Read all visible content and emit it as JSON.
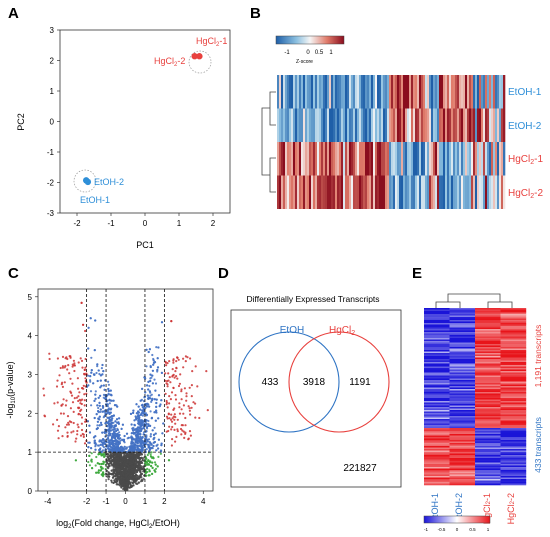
{
  "panels": {
    "A": {
      "letter": "A",
      "xlabel": "PC1",
      "ylabel": "PC2",
      "x_ticks": [
        "-2",
        "-1",
        "0",
        "1",
        "2"
      ],
      "y_ticks": [
        "3",
        "2",
        "1",
        "0",
        "-1",
        "-2",
        "-3"
      ],
      "group_labels": {
        "hg1": "HgCl",
        "hg1_sub": "2",
        "hg1_suf": "-1",
        "hg2": "HgCl",
        "hg2_sub": "2",
        "hg2_suf": "-2",
        "etoh1": "EtOH-1",
        "etoh2": "EtOH-2"
      },
      "colors": {
        "hg": "#e8413e",
        "etoh": "#2f8fd8"
      }
    },
    "B": {
      "letter": "B",
      "legend_ticks": [
        "-1",
        "0",
        "0.5",
        "1"
      ],
      "legend_title": "Z-score",
      "row_labels": {
        "etoh1": "EtOH-1",
        "etoh2": "EtOH-2",
        "hg": "HgCl",
        "hg_sub": "2",
        "hg1_suf": "-1",
        "hg2_suf": "-2"
      }
    },
    "C": {
      "letter": "C",
      "x_ticks": [
        "-4",
        "-2",
        "-1",
        "0",
        "1",
        "2",
        "4"
      ],
      "y_ticks": [
        "5",
        "4",
        "3",
        "2",
        "1",
        "0"
      ],
      "xlabel_pre": "log",
      "xlabel_sub": "2",
      "xlabel_post": "(Fold change, HgCl",
      "xlabel_sub2": "2",
      "xlabel_end": "/EtOH)",
      "ylabel_pre": "-log",
      "ylabel_sub": "10",
      "ylabel_post": "(p-value)"
    },
    "D": {
      "letter": "D",
      "title": "Differentially Expressed Transcripts",
      "etoh_label": "EtOH",
      "hg_label": "HgCl",
      "hg_sub": "2",
      "only_etoh": "433",
      "both": "3918",
      "only_hg": "1191",
      "neither": "221827"
    },
    "E": {
      "letter": "E",
      "col_labels": {
        "etoh1": "EtOH-1",
        "etoh2": "EtOH-2",
        "hg": "HgCl",
        "hg_sub": "2",
        "hg1_suf": "-1",
        "hg2_suf": "-2"
      },
      "side_up": "1,191 transcripts",
      "side_down": "433 transcripts",
      "legend_ticks": [
        "-1",
        "-0.5",
        "0",
        "0.5",
        "1"
      ]
    }
  },
  "chart_data": [
    {
      "type": "scatter",
      "panel": "A",
      "xlabel": "PC1",
      "ylabel": "PC2",
      "xlim": [
        -2.5,
        2.5
      ],
      "ylim": [
        -3,
        3
      ],
      "series": [
        {
          "name": "EtOH",
          "points": [
            [
              -1.73,
              -1.93
            ],
            [
              -1.68,
              -1.98
            ]
          ]
        },
        {
          "name": "HgCl2",
          "points": [
            [
              1.46,
              2.14
            ],
            [
              1.6,
              2.14
            ]
          ]
        }
      ]
    },
    {
      "type": "heatmap",
      "panel": "B",
      "rows": [
        "EtOH-1",
        "EtOH-2",
        "HgCl2-1",
        "HgCl2-2"
      ],
      "color_range": [
        -1,
        1
      ]
    },
    {
      "type": "scatter",
      "panel": "C",
      "xlim": [
        -4.5,
        4.5
      ],
      "ylim": [
        0,
        5.2
      ],
      "vertical_lines": [
        -2,
        -1,
        1,
        2
      ],
      "horizontal_line": 1
    },
    {
      "type": "table",
      "panel": "D",
      "sets": [
        "EtOH",
        "HgCl2"
      ],
      "values": {
        "EtOH_only": 433,
        "both": 3918,
        "HgCl2_only": 1191,
        "neither": 221827
      }
    },
    {
      "type": "heatmap",
      "panel": "E",
      "columns": [
        "EtOH-1",
        "EtOH-2",
        "HgCl2-1",
        "HgCl2-2"
      ],
      "row_groups": [
        {
          "label": "1,191 transcripts",
          "count": 1191
        },
        {
          "label": "433 transcripts",
          "count": 433
        }
      ],
      "color_range": [
        -1,
        1
      ]
    }
  ]
}
